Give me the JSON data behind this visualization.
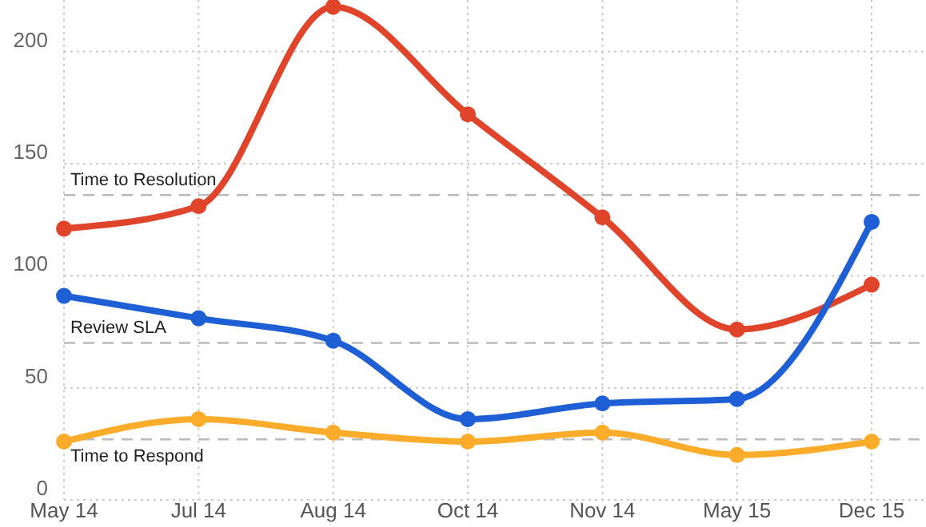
{
  "chart_data": {
    "type": "line",
    "categories": [
      "May 14",
      "Jul 14",
      "Aug 14",
      "Oct 14",
      "Nov 14",
      "May 15",
      "Dec 15"
    ],
    "series": [
      {
        "color": "#e0442a",
        "values": [
          121,
          131,
          220,
          172,
          126,
          76,
          96
        ]
      },
      {
        "color": "#1f5fd6",
        "values": [
          91,
          81,
          71,
          36,
          43,
          45,
          124
        ]
      },
      {
        "color": "#fbac2a",
        "values": [
          26,
          36,
          30,
          26,
          30,
          20,
          26
        ]
      }
    ],
    "ylim": [
      0,
      223
    ],
    "yticks": [
      0,
      50,
      100,
      150,
      200
    ],
    "grid": true,
    "marker": "circle",
    "line_style": "solid",
    "ref_lines": [
      {
        "axis": "y",
        "value": 136,
        "label": "Time to Resolution",
        "color": "#bbbbbb",
        "line_style": "dashed"
      },
      {
        "axis": "y",
        "value": 70,
        "label": "Review SLA",
        "color": "#bbbbbb",
        "line_style": "dashed"
      },
      {
        "axis": "y",
        "value": 27,
        "label": "Time to Respond",
        "color": "#bbbbbb",
        "line_style": "dashed"
      }
    ]
  }
}
